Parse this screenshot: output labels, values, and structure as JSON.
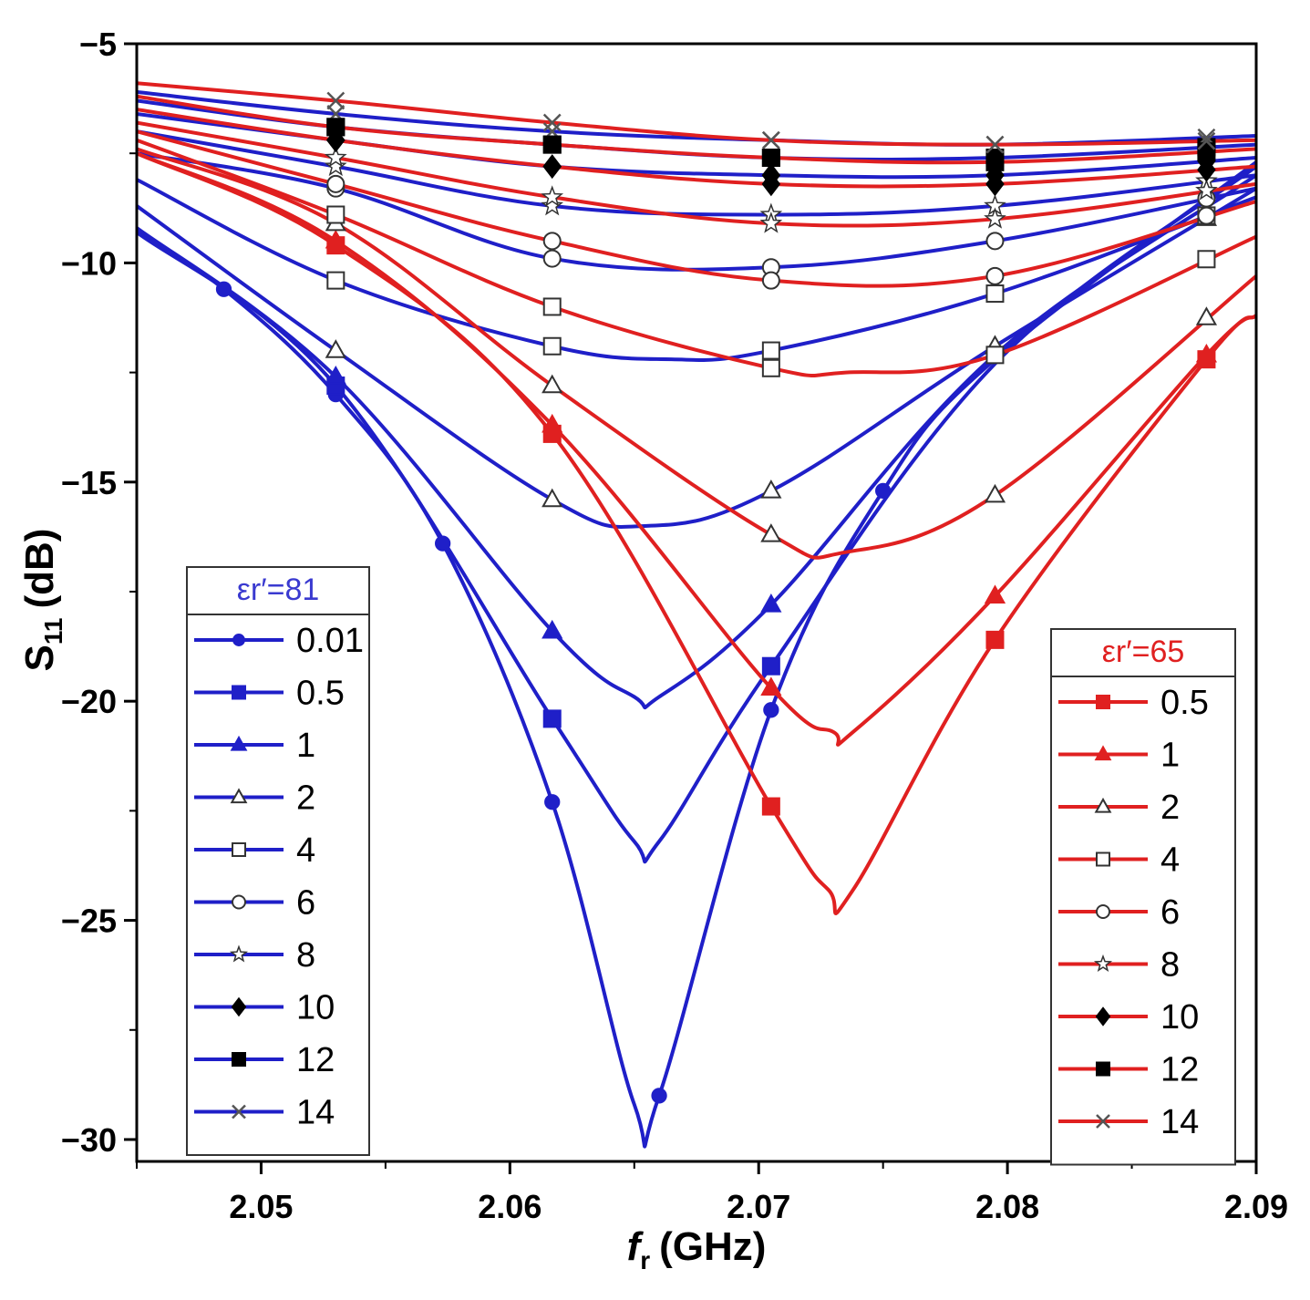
{
  "chart_data": {
    "type": "line",
    "xlabel": "f",
    "xlabel_sub": "r",
    "xlabel_unit": "(GHz)",
    "ylabel": "S",
    "ylabel_sub": "11",
    "ylabel_unit": "(dB)",
    "xlim": [
      2.045,
      2.09
    ],
    "ylim": [
      -30.5,
      -5
    ],
    "x_ticks": [
      2.05,
      2.06,
      2.07,
      2.08,
      2.09
    ],
    "x_tick_labels": [
      "2.05",
      "2.06",
      "2.07",
      "2.08",
      "2.09"
    ],
    "y_ticks": [
      -5,
      -10,
      -15,
      -20,
      -25,
      -30
    ],
    "y_tick_labels": [
      "-5",
      "-10",
      "-15",
      "-20",
      "-25",
      "-30"
    ],
    "colors": {
      "blue": "#1f1fc8",
      "red": "#e02020",
      "legend_blue_title": "#3a3ad0",
      "legend_red_title": "#e02020"
    },
    "groups": [
      {
        "name": "er81",
        "legend_title": "εr′=81",
        "legend_position": "bottom-left",
        "color": "#1f1fc8",
        "series": [
          {
            "name": "0.01",
            "marker": "small-circle",
            "fill": "color",
            "x": [
              2.045,
              2.0485,
              2.053,
              2.0573,
              2.0617,
              2.065,
              2.066,
              2.0705,
              2.075,
              2.0795,
              2.09
            ],
            "y": [
              -9.3,
              -10.6,
              -13.0,
              -16.4,
              -22.3,
              -29.2,
              -29.0,
              -20.2,
              -15.2,
              -12.2,
              -7.7
            ],
            "marker_x": [
              2.0485,
              2.053,
              2.0573,
              2.0617,
              2.066,
              2.0705,
              2.075
            ]
          },
          {
            "name": "0.5",
            "marker": "square",
            "fill": "color",
            "x": [
              2.045,
              2.053,
              2.0617,
              2.065,
              2.066,
              2.0705,
              2.0795,
              2.09
            ],
            "y": [
              -9.3,
              -12.8,
              -20.4,
              -23.2,
              -23.2,
              -19.2,
              -12.3,
              -7.8
            ],
            "marker_x": [
              2.053,
              2.0617,
              2.0705
            ]
          },
          {
            "name": "1",
            "marker": "triangle",
            "fill": "color",
            "x": [
              2.045,
              2.053,
              2.0617,
              2.065,
              2.066,
              2.0705,
              2.0795,
              2.09
            ],
            "y": [
              -9.2,
              -12.6,
              -18.4,
              -19.9,
              -19.9,
              -17.8,
              -12.1,
              -8.0
            ],
            "marker_x": [
              2.053,
              2.0617,
              2.0705
            ]
          },
          {
            "name": "2",
            "marker": "triangle",
            "fill": "white",
            "x": [
              2.045,
              2.053,
              2.0617,
              2.0655,
              2.0705,
              2.0795,
              2.09
            ],
            "y": [
              -8.7,
              -12.0,
              -15.4,
              -16.0,
              -15.2,
              -11.9,
              -8.3
            ],
            "marker_x": [
              2.053,
              2.0617,
              2.0705,
              2.0795,
              2.088
            ]
          },
          {
            "name": "4",
            "marker": "square",
            "fill": "white",
            "x": [
              2.045,
              2.053,
              2.0617,
              2.0665,
              2.0705,
              2.0795,
              2.09
            ],
            "y": [
              -8.1,
              -10.4,
              -11.9,
              -12.2,
              -12.0,
              -10.7,
              -8.5
            ],
            "marker_x": [
              2.053,
              2.0617,
              2.0705,
              2.0795,
              2.088
            ]
          },
          {
            "name": "6",
            "marker": "circle",
            "fill": "white",
            "x": [
              2.045,
              2.053,
              2.0617,
              2.0705,
              2.0795,
              2.09
            ],
            "y": [
              -7.5,
              -8.3,
              -9.9,
              -10.1,
              -9.5,
              -8.3
            ],
            "marker_x": [
              2.053,
              2.0617,
              2.0705,
              2.0795,
              2.088
            ]
          },
          {
            "name": "8",
            "marker": "star",
            "fill": "white",
            "x": [
              2.045,
              2.053,
              2.0617,
              2.0705,
              2.0795,
              2.09
            ],
            "y": [
              -7.0,
              -7.8,
              -8.7,
              -8.9,
              -8.7,
              -8.0
            ],
            "marker_x": [
              2.053,
              2.0617,
              2.0705,
              2.0795,
              2.088
            ]
          },
          {
            "name": "10",
            "marker": "diamond",
            "fill": "black",
            "x": [
              2.045,
              2.053,
              2.0617,
              2.0705,
              2.0795,
              2.09
            ],
            "y": [
              -6.6,
              -7.2,
              -7.8,
              -8.0,
              -8.0,
              -7.6
            ],
            "marker_x": [
              2.053,
              2.0617,
              2.0705,
              2.0795,
              2.088
            ]
          },
          {
            "name": "12",
            "marker": "square",
            "fill": "black",
            "x": [
              2.045,
              2.053,
              2.0617,
              2.0705,
              2.0795,
              2.09
            ],
            "y": [
              -6.3,
              -6.9,
              -7.3,
              -7.6,
              -7.6,
              -7.3
            ],
            "marker_x": [
              2.053,
              2.0617,
              2.0705,
              2.0795,
              2.088
            ]
          },
          {
            "name": "14",
            "marker": "x",
            "fill": "none",
            "x": [
              2.045,
              2.053,
              2.0617,
              2.0705,
              2.0795,
              2.09
            ],
            "y": [
              -6.1,
              -6.6,
              -7.0,
              -7.2,
              -7.3,
              -7.1
            ],
            "marker_x": [
              2.053,
              2.0617,
              2.0705,
              2.0795,
              2.088
            ]
          }
        ]
      },
      {
        "name": "er65",
        "legend_title": "εr′=65",
        "legend_position": "bottom-right",
        "color": "#e02020",
        "series": [
          {
            "name": "0.5",
            "marker": "square",
            "fill": "color",
            "x": [
              2.045,
              2.053,
              2.0617,
              2.0705,
              2.0728,
              2.0738,
              2.0795,
              2.088,
              2.09
            ],
            "y": [
              -7.5,
              -9.6,
              -13.9,
              -22.4,
              -24.3,
              -24.3,
              -18.6,
              -12.2,
              -11.2
            ],
            "marker_x": [
              2.053,
              2.0617,
              2.0705,
              2.0795,
              2.088
            ]
          },
          {
            "name": "1",
            "marker": "triangle",
            "fill": "color",
            "x": [
              2.045,
              2.053,
              2.0617,
              2.0705,
              2.073,
              2.0738,
              2.0795,
              2.088,
              2.09
            ],
            "y": [
              -7.5,
              -9.5,
              -13.7,
              -19.7,
              -20.7,
              -20.7,
              -17.6,
              -12.1,
              -11.2
            ],
            "marker_x": [
              2.053,
              2.0617,
              2.0705,
              2.0795,
              2.088
            ]
          },
          {
            "name": "2",
            "marker": "triangle",
            "fill": "white",
            "x": [
              2.045,
              2.053,
              2.0617,
              2.0705,
              2.0735,
              2.0795,
              2.09
            ],
            "y": [
              -7.4,
              -9.1,
              -12.8,
              -16.2,
              -16.6,
              -15.3,
              -10.3
            ],
            "marker_x": [
              2.053,
              2.0617,
              2.0705,
              2.0795,
              2.088
            ]
          },
          {
            "name": "4",
            "marker": "square",
            "fill": "white",
            "x": [
              2.045,
              2.053,
              2.0617,
              2.0705,
              2.0735,
              2.0795,
              2.09
            ],
            "y": [
              -7.2,
              -8.9,
              -11.0,
              -12.4,
              -12.5,
              -12.1,
              -9.4
            ],
            "marker_x": [
              2.053,
              2.0617,
              2.0705,
              2.0795,
              2.088
            ]
          },
          {
            "name": "6",
            "marker": "circle",
            "fill": "white",
            "x": [
              2.045,
              2.053,
              2.0617,
              2.0705,
              2.0795,
              2.09
            ],
            "y": [
              -7.0,
              -8.2,
              -9.5,
              -10.4,
              -10.3,
              -8.6
            ],
            "marker_x": [
              2.053,
              2.0617,
              2.0705,
              2.0795,
              2.088
            ]
          },
          {
            "name": "8",
            "marker": "star",
            "fill": "white",
            "x": [
              2.045,
              2.053,
              2.0617,
              2.0705,
              2.0795,
              2.09
            ],
            "y": [
              -6.8,
              -7.6,
              -8.5,
              -9.1,
              -9.0,
              -8.2
            ],
            "marker_x": [
              2.053,
              2.0617,
              2.0705,
              2.0795,
              2.088
            ]
          },
          {
            "name": "10",
            "marker": "diamond",
            "fill": "black",
            "x": [
              2.045,
              2.053,
              2.0617,
              2.0705,
              2.0795,
              2.09
            ],
            "y": [
              -6.5,
              -7.2,
              -7.8,
              -8.2,
              -8.2,
              -7.8
            ],
            "marker_x": [
              2.053,
              2.0617,
              2.0705,
              2.0795,
              2.088
            ]
          },
          {
            "name": "12",
            "marker": "square",
            "fill": "black",
            "x": [
              2.045,
              2.053,
              2.0617,
              2.0705,
              2.0795,
              2.09
            ],
            "y": [
              -6.2,
              -6.9,
              -7.3,
              -7.6,
              -7.7,
              -7.4
            ],
            "marker_x": [
              2.053,
              2.0617,
              2.0705,
              2.0795,
              2.088
            ]
          },
          {
            "name": "14",
            "marker": "x",
            "fill": "none",
            "x": [
              2.045,
              2.053,
              2.0617,
              2.0705,
              2.0795,
              2.09
            ],
            "y": [
              -5.9,
              -6.3,
              -6.8,
              -7.2,
              -7.3,
              -7.2
            ],
            "marker_x": [
              2.053,
              2.0617,
              2.0705,
              2.0795,
              2.088
            ]
          }
        ]
      }
    ]
  }
}
